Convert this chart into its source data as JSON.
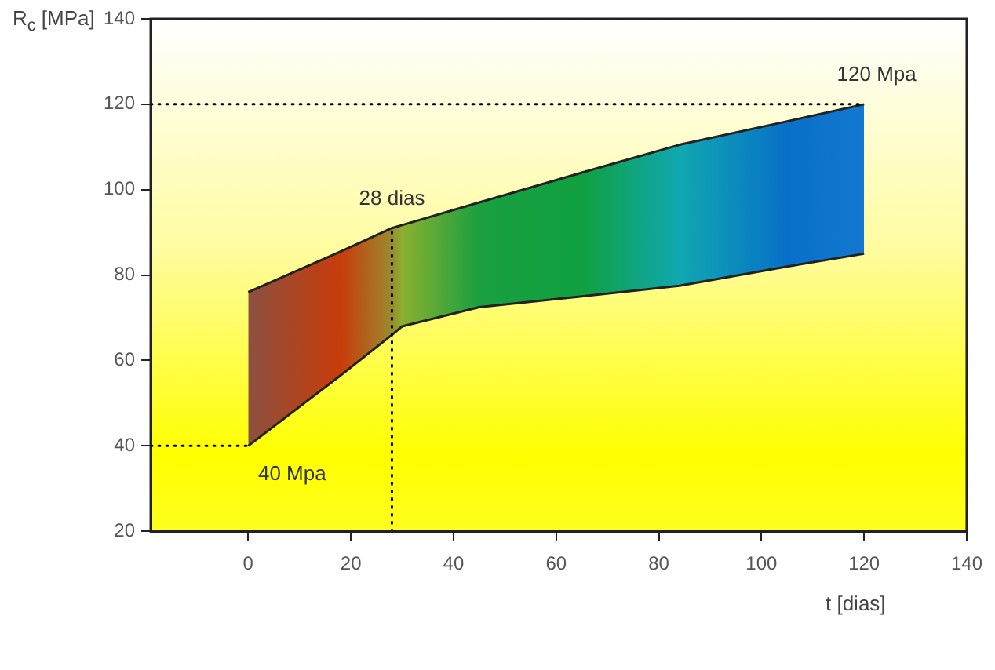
{
  "chart_data": {
    "type": "area",
    "xlabel": "t [dias]",
    "ylabel": "R$_{c}$ [MPa]",
    "x": [
      0,
      18,
      28,
      30,
      45,
      65,
      84,
      105,
      120
    ],
    "series": [
      {
        "type": "line",
        "color": "#222222",
        "values": [
          40,
          56.5,
          66,
          68,
          72.5,
          75,
          77.5,
          82,
          85
        ]
      },
      {
        "values": [
          76,
          85.5,
          91,
          91.7,
          97,
          104,
          110.5,
          116,
          120
        ],
        "colors": [
          "#8c5040",
          "#c83c0a",
          "#9a8a30",
          "#8ab030",
          "#1aa040",
          "#10a040",
          "#10a8b0",
          "#0870c8",
          "#1478d0"
        ]
      }
    ],
    "xlim": [
      -19,
      140
    ],
    "xticks": [
      0,
      20,
      40,
      60,
      80,
      100,
      120,
      140
    ],
    "ylim": [
      20,
      140
    ],
    "yticks": [
      20,
      40,
      60,
      80,
      100,
      120,
      140
    ],
    "grid": false,
    "legend": false,
    "marker": "none",
    "ref_lines": [
      {
        "axis": "y",
        "value": 120,
        "line_style": "dotted",
        "color": "#000000"
      },
      {
        "axis": "y",
        "value": 40,
        "line_style": "dotted",
        "color": "#000000"
      },
      {
        "axis": "x",
        "value": 28,
        "line_style": "dotted",
        "color": "#000000"
      }
    ],
    "annotations": [
      {
        "text": "28 dias",
        "x": 28,
        "y": 91
      },
      {
        "text": "120 Mpa",
        "x": 120,
        "y": 120
      },
      {
        "text": "40 Mpa",
        "x": 0,
        "y": 40
      }
    ]
  }
}
